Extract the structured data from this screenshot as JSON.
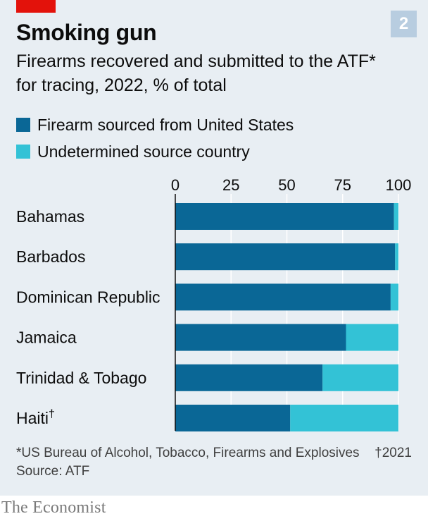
{
  "badge": "2",
  "chart_data": {
    "type": "bar",
    "stacked": true,
    "orientation": "horizontal",
    "title": "Smoking gun",
    "subtitle": "Firearms recovered and submitted to the ATF* for tracing, 2022, % of total",
    "xlim": [
      0,
      100
    ],
    "xticks": [
      "0",
      "25",
      "50",
      "75",
      "100"
    ],
    "categories": [
      "Bahamas",
      "Barbados",
      "Dominican Republic",
      "Jamaica",
      "Trinidad & Tobago",
      "Haiti"
    ],
    "category_marks": [
      "",
      "",
      "",
      "",
      "",
      "†"
    ],
    "series": [
      {
        "name": "Firearm sourced from United States",
        "color": "#0a6796",
        "values": [
          98,
          98.5,
          96.5,
          76.5,
          66,
          51.5
        ]
      },
      {
        "name": "Undetermined source country",
        "color": "#33c2d6",
        "values": [
          2,
          1.5,
          3.5,
          23.5,
          34,
          48.5
        ]
      }
    ],
    "grid": true,
    "legend_position": "top-left"
  },
  "footnote": "*US Bureau of Alcohol, Tobacco, Firearms and Explosives",
  "footnote_dagger": "†2021",
  "source": "Source: ATF",
  "brand": "The Economist"
}
